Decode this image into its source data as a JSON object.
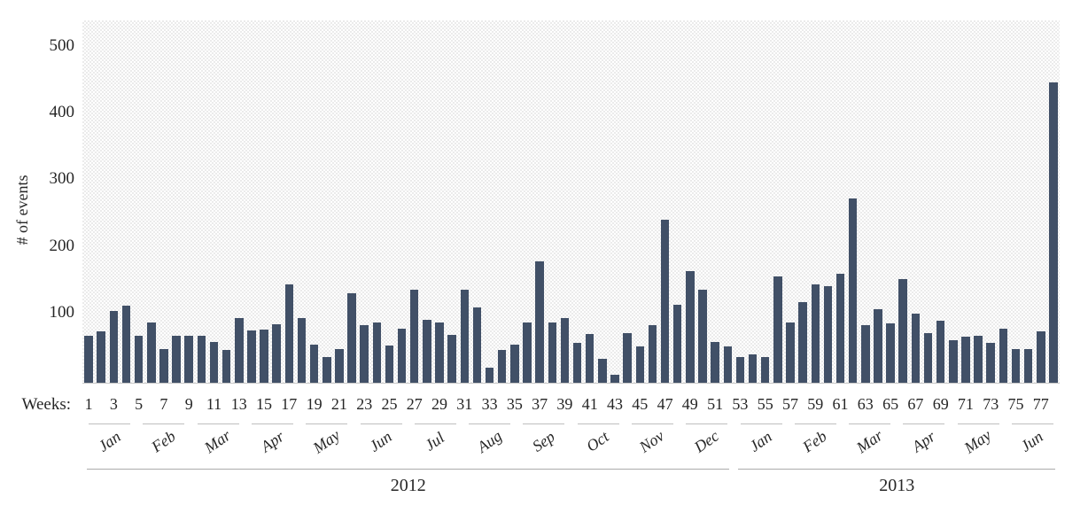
{
  "chart_data": {
    "type": "bar",
    "title": "",
    "ylabel": "# of events",
    "x_axis_prefix": "Weeks:",
    "bar_color": "#415067",
    "grid": false,
    "legend": "none",
    "ylim": [
      0,
      540
    ],
    "yticks": [
      100,
      200,
      300,
      400,
      500
    ],
    "x": [
      1,
      2,
      3,
      4,
      5,
      6,
      7,
      8,
      9,
      10,
      11,
      12,
      13,
      14,
      15,
      16,
      17,
      18,
      19,
      20,
      21,
      22,
      23,
      24,
      25,
      26,
      27,
      28,
      29,
      30,
      31,
      32,
      33,
      34,
      35,
      36,
      37,
      38,
      39,
      40,
      41,
      42,
      43,
      44,
      45,
      46,
      47,
      48,
      49,
      50,
      51,
      52,
      53,
      54,
      55,
      56,
      57,
      58,
      59,
      60,
      61,
      62,
      63,
      64,
      65,
      66,
      67,
      68,
      69,
      70,
      71,
      72,
      73,
      74,
      75,
      76,
      77,
      78
    ],
    "values": [
      70,
      77,
      108,
      115,
      71,
      90,
      51,
      70,
      71,
      70,
      61,
      49,
      97,
      78,
      80,
      88,
      147,
      97,
      57,
      39,
      50,
      134,
      86,
      90,
      56,
      81,
      140,
      94,
      90,
      72,
      140,
      113,
      23,
      49,
      57,
      90,
      182,
      91,
      97,
      60,
      73,
      36,
      12,
      75,
      54,
      87,
      244,
      117,
      167,
      139,
      61,
      55,
      39,
      43,
      38,
      160,
      91,
      121,
      147,
      145,
      163,
      276,
      86,
      110,
      89,
      155,
      103,
      75,
      93,
      64,
      69,
      70,
      60,
      81,
      50,
      50,
      77,
      450
    ],
    "week_tick_labels": [
      "1",
      "3",
      "5",
      "7",
      "9",
      "11",
      "13",
      "15",
      "17",
      "19",
      "21",
      "23",
      "25",
      "27",
      "29",
      "31",
      "33",
      "35",
      "37",
      "39",
      "41",
      "43",
      "45",
      "47",
      "49",
      "51",
      "53",
      "55",
      "57",
      "59",
      "61",
      "63",
      "65",
      "67",
      "69",
      "71",
      "73",
      "75",
      "77"
    ],
    "month_groups": [
      {
        "label": "Jan"
      },
      {
        "label": "Feb"
      },
      {
        "label": "Mar"
      },
      {
        "label": "Apr"
      },
      {
        "label": "May"
      },
      {
        "label": "Jun"
      },
      {
        "label": "Jul"
      },
      {
        "label": "Aug"
      },
      {
        "label": "Sep"
      },
      {
        "label": "Oct"
      },
      {
        "label": "Nov"
      },
      {
        "label": "Dec"
      },
      {
        "label": "Jan"
      },
      {
        "label": "Feb"
      },
      {
        "label": "Mar"
      },
      {
        "label": "Apr"
      },
      {
        "label": "May"
      },
      {
        "label": "Jun"
      }
    ],
    "years": [
      {
        "label": "2012",
        "month_start": 0,
        "month_end": 11
      },
      {
        "label": "2013",
        "month_start": 12,
        "month_end": 17
      }
    ]
  }
}
